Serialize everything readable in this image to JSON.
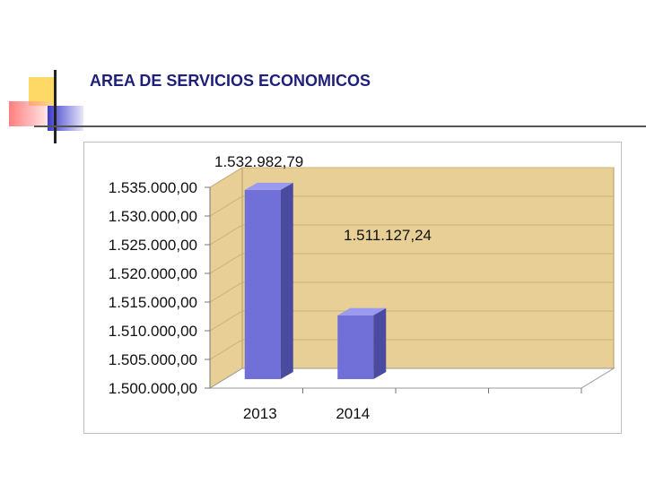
{
  "slide": {
    "title": "AREA DE SERVICIOS ECONOMICOS"
  },
  "colors": {
    "bar_front": "#7070d8",
    "bar_side": "#4a4aa0",
    "bar_top": "#9a9af0",
    "wall": "#e7cf96",
    "floor": "#ffffff",
    "grid": "#cbb27c"
  },
  "chart_data": {
    "type": "bar",
    "three_d": true,
    "categories": [
      "2013",
      "2014"
    ],
    "values": [
      1532982.79,
      1511127.24
    ],
    "data_labels": [
      "1.532.982,79",
      "1.511.127,24"
    ],
    "ylim": [
      1500000,
      1535000
    ],
    "yticks": [
      1500000,
      1505000,
      1510000,
      1515000,
      1520000,
      1525000,
      1530000,
      1535000
    ],
    "ytick_labels": [
      "1.500.000,00",
      "1.505.000,00",
      "1.510.000,00",
      "1.515.000,00",
      "1.520.000,00",
      "1.525.000,00",
      "1.530.000,00",
      "1.535.000,00"
    ],
    "slots": 4,
    "grid": true,
    "legend": "none"
  }
}
